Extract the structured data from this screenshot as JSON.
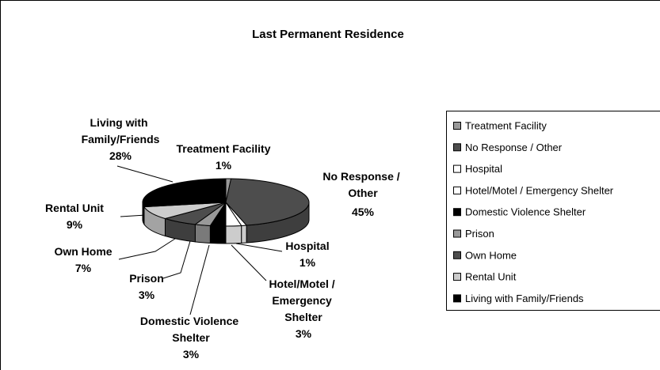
{
  "chart_data": {
    "type": "pie3d",
    "title": "Last Permanent Residence",
    "categories": [
      "Treatment Facility",
      "No Response / Other",
      "Hospital",
      "Hotel/Motel / Emergency Shelter",
      "Domestic Violence Shelter",
      "Prison",
      "Own Home",
      "Rental Unit",
      "Living with Family/Friends"
    ],
    "values": [
      1,
      45,
      1,
      3,
      3,
      3,
      7,
      9,
      28
    ],
    "value_labels": [
      "1%",
      "45%",
      "1%",
      "3%",
      "3%",
      "3%",
      "7%",
      "9%",
      "28%"
    ],
    "colors": [
      "#999999",
      "#4d4d4d",
      "#ffffff",
      "#ffffff",
      "#000000",
      "#999999",
      "#4d4d4d",
      "#cccccc",
      "#000000"
    ]
  }
}
